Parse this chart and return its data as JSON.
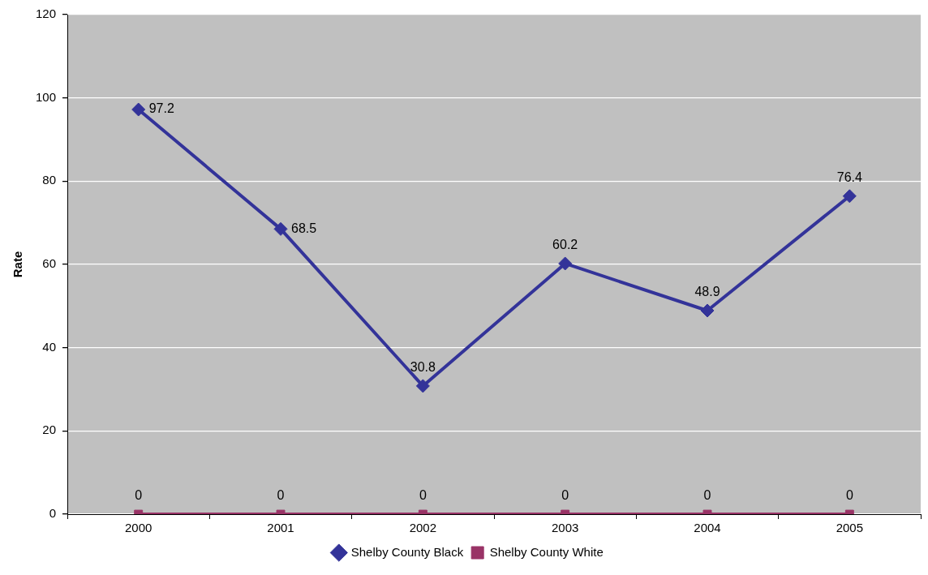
{
  "chart_data": {
    "type": "line",
    "ylabel": "Rate",
    "categories": [
      "2000",
      "2001",
      "2002",
      "2003",
      "2004",
      "2005"
    ],
    "series": [
      {
        "name": "Shelby County Black",
        "color": "#333399",
        "marker": "diamond",
        "values": [
          97.2,
          68.5,
          30.8,
          60.2,
          48.9,
          76.4
        ]
      },
      {
        "name": "Shelby County White",
        "color": "#993366",
        "marker": "square",
        "values": [
          0,
          0,
          0,
          0,
          0,
          0
        ]
      }
    ],
    "ylim": [
      0,
      120
    ],
    "yticks": [
      0,
      20,
      40,
      60,
      80,
      100,
      120
    ],
    "grid": "y",
    "legend": "bottom",
    "data_labels": true
  }
}
